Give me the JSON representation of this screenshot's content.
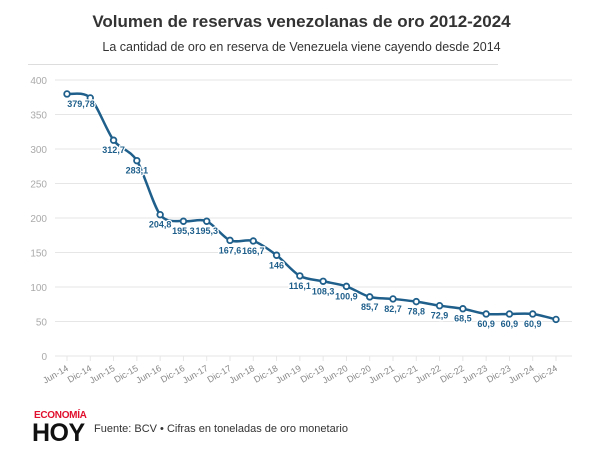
{
  "header": {
    "title": "Volumen de reservas venezolanas de oro 2012-2024",
    "subtitle": "La cantidad de oro en reserva de Venezuela viene cayendo desde 2014"
  },
  "footer": {
    "logo_top": "ECONOMÍA",
    "logo_bottom": "HOY",
    "source": "Fuente: BCV • Cifras en toneladas de oro monetario"
  },
  "colors": {
    "line": "#1f5f8b",
    "label": "#1f5f8b",
    "grid": "#e6e6e6",
    "axis_text": "#aaaaaa",
    "logo_red": "#e0102e"
  },
  "chart_data": {
    "type": "line",
    "title": "Volumen de reservas venezolanas de oro 2012-2024",
    "subtitle": "La cantidad de oro en reserva de Venezuela viene cayendo desde 2014",
    "xlabel": "",
    "ylabel": "",
    "ylim": [
      0,
      400
    ],
    "yticks": [
      0,
      50,
      100,
      150,
      200,
      250,
      300,
      350,
      400
    ],
    "grid": true,
    "legend": "none",
    "categories": [
      "Jun-14",
      "Dic-14",
      "Jun-15",
      "Dic-15",
      "Jun-16",
      "Dic-16",
      "Jun-17",
      "Dic-17",
      "Jun-18",
      "Dic-18",
      "Jun-19",
      "Dic-19",
      "Jun-20",
      "Dic-20",
      "Jun-21",
      "Dic-21",
      "Jun-22",
      "Dic-22",
      "Jun-23",
      "Dic-23",
      "Jun-24",
      "Dic-24"
    ],
    "series": [
      {
        "name": "Toneladas de oro",
        "values": [
          379.78,
          374,
          312.7,
          283.1,
          204.8,
          195.3,
          195.3,
          167.6,
          166.7,
          146,
          116.1,
          108.3,
          100.9,
          85.7,
          82.7,
          78.8,
          72.9,
          68.5,
          60.9,
          60.9,
          60.9,
          53
        ],
        "labels": [
          "379,78",
          "",
          "312,7",
          "283,1",
          "204,8",
          "195,3",
          "195,3",
          "167,6",
          "166,7",
          "146",
          "116,1",
          "108,3",
          "100,9",
          "85,7",
          "82,7",
          "78,8",
          "72,9",
          "68,5",
          "60,9",
          "60,9",
          "60,9",
          ""
        ]
      }
    ]
  }
}
